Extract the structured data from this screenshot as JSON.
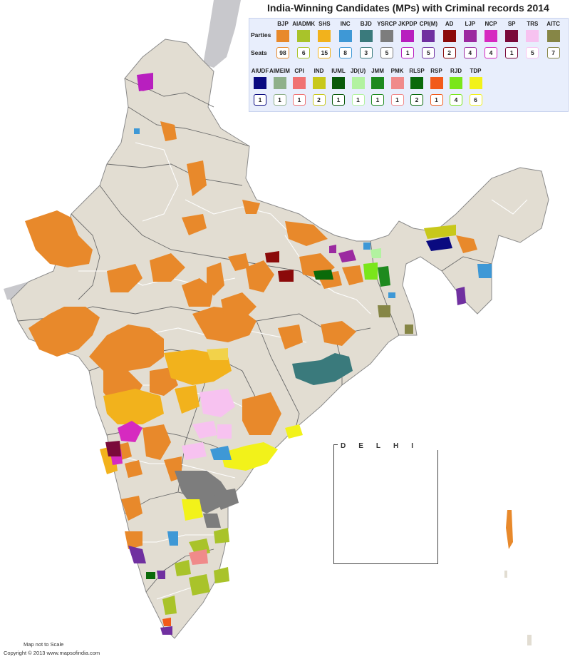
{
  "title": "India-Winning Candidates (MPs) with Criminal records 2014",
  "legend": {
    "parties_label": "Parties",
    "seats_label": "Seats",
    "row1": [
      {
        "party": "BJP",
        "seats": "98",
        "color": "#e8892b"
      },
      {
        "party": "AIADMK",
        "seats": "6",
        "color": "#a9c32a"
      },
      {
        "party": "SHS",
        "seats": "15",
        "color": "#f2b21c"
      },
      {
        "party": "INC",
        "seats": "8",
        "color": "#3e98d6"
      },
      {
        "party": "BJD",
        "seats": "3",
        "color": "#3a7a7c"
      },
      {
        "party": "YSRCP",
        "seats": "5",
        "color": "#7d7d7d"
      },
      {
        "party": "JKPDP",
        "seats": "1",
        "color": "#b81fbf"
      },
      {
        "party": "CPI(M)",
        "seats": "5",
        "color": "#7030a0"
      },
      {
        "party": "AD",
        "seats": "2",
        "color": "#8b0a0a"
      },
      {
        "party": "LJP",
        "seats": "4",
        "color": "#9b2aa0"
      },
      {
        "party": "NCP",
        "seats": "4",
        "color": "#d62ac0"
      },
      {
        "party": "SP",
        "seats": "1",
        "color": "#7a0a3a"
      },
      {
        "party": "TRS",
        "seats": "5",
        "color": "#f7c2f0"
      },
      {
        "party": "AITC",
        "seats": "7",
        "color": "#868646"
      }
    ],
    "row2": [
      {
        "party": "AIUDF",
        "seats": "1",
        "color": "#0a0a80"
      },
      {
        "party": "AIMEIM",
        "seats": "1",
        "color": "#8fb08a"
      },
      {
        "party": "CPI",
        "seats": "1",
        "color": "#f07272"
      },
      {
        "party": "IND",
        "seats": "2",
        "color": "#c8c81a"
      },
      {
        "party": "IUML",
        "seats": "1",
        "color": "#0a5a0a"
      },
      {
        "party": "JD(U)",
        "seats": "1",
        "color": "#b2f2a0"
      },
      {
        "party": "JMM",
        "seats": "1",
        "color": "#1e8a1e"
      },
      {
        "party": "PMK",
        "seats": "1",
        "color": "#f08a8a"
      },
      {
        "party": "RLSP",
        "seats": "2",
        "color": "#0a6a0a"
      },
      {
        "party": "RSP",
        "seats": "1",
        "color": "#f25a1a"
      },
      {
        "party": "RJD",
        "seats": "4",
        "color": "#7ae61a"
      },
      {
        "party": "TDP",
        "seats": "6",
        "color": "#f2f21a"
      }
    ]
  },
  "inset": {
    "title": "DELHI"
  },
  "footer": {
    "note": "Map not to Scale",
    "copyright": "Copyright © 2013 www.mapsofindia.com"
  },
  "colors": {
    "land": "#e2ddd2",
    "neighbor": "#c8c8cc",
    "border": "#ffffff",
    "state_border": "#6a6a6a"
  }
}
